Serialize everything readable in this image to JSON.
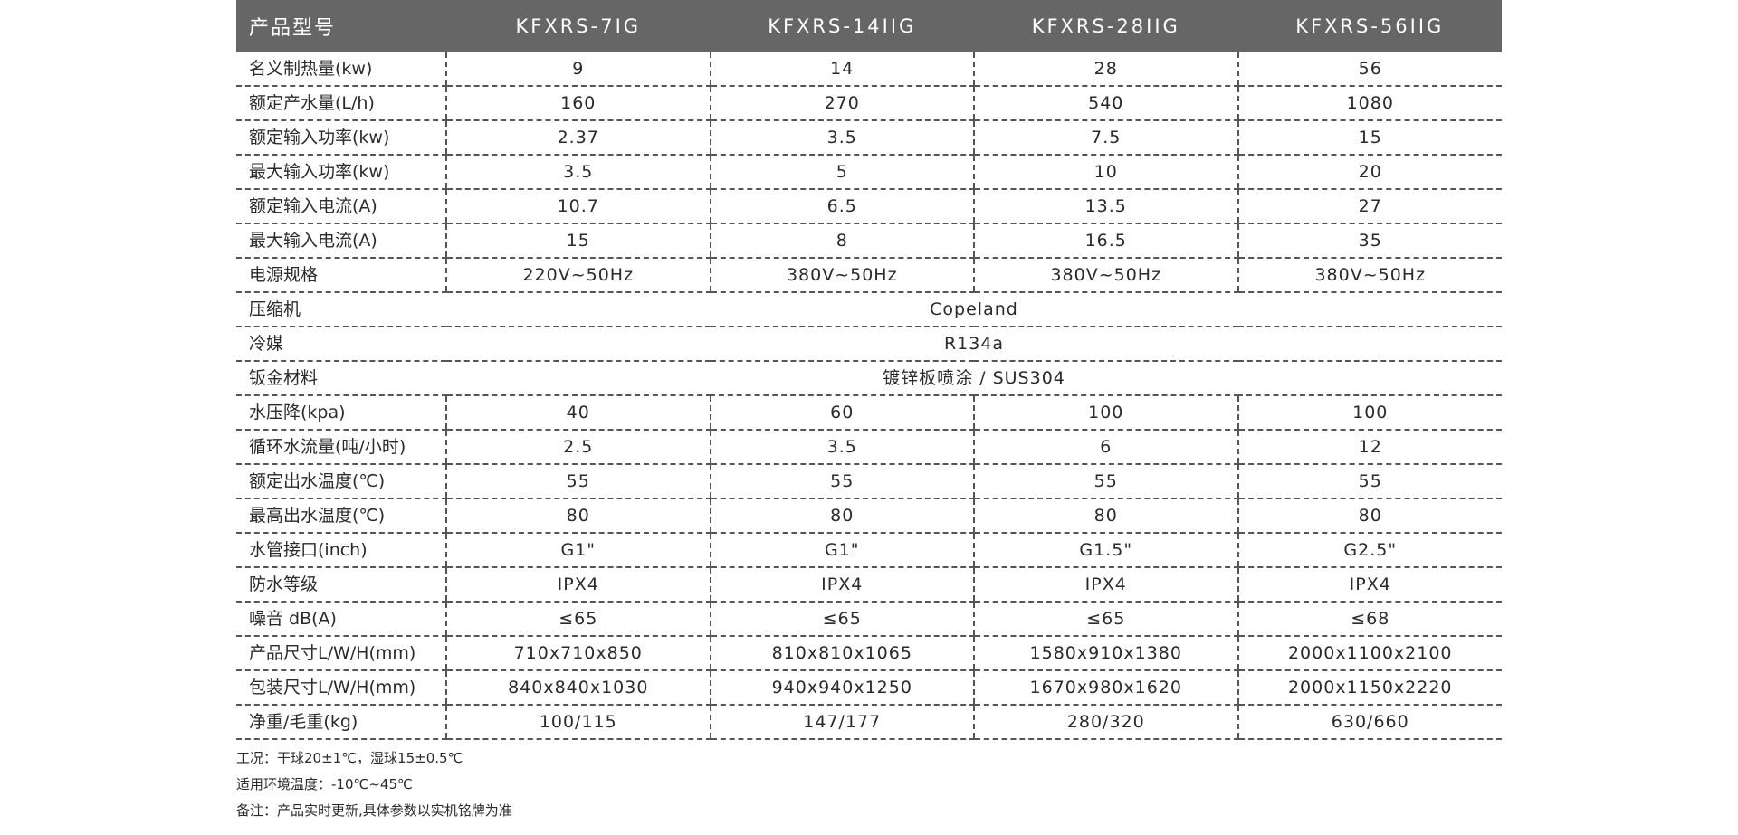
{
  "table": {
    "header": [
      "产品型号",
      "KFXRS-7IG",
      "KFXRS-14IIG",
      "KFXRS-28IIG",
      "KFXRS-56IIG"
    ],
    "rows": [
      {
        "label": "名义制热量(kw)",
        "values": [
          "9",
          "14",
          "28",
          "56"
        ]
      },
      {
        "label": "额定产水量(L/h)",
        "values": [
          "160",
          "270",
          "540",
          "1080"
        ]
      },
      {
        "label": "额定输入功率(kw)",
        "values": [
          "2.37",
          "3.5",
          "7.5",
          "15"
        ]
      },
      {
        "label": "最大输入功率(kw)",
        "values": [
          "3.5",
          "5",
          "10",
          "20"
        ]
      },
      {
        "label": "额定输入电流(A)",
        "values": [
          "10.7",
          "6.5",
          "13.5",
          "27"
        ]
      },
      {
        "label": "最大输入电流(A)",
        "values": [
          "15",
          "8",
          "16.5",
          "35"
        ]
      },
      {
        "label": "电源规格",
        "values": [
          "220V~50Hz",
          "380V~50Hz",
          "380V~50Hz",
          "380V~50Hz"
        ]
      },
      {
        "label": "压缩机",
        "values": [
          "Copeland"
        ]
      },
      {
        "label": "冷媒",
        "values": [
          "R134a"
        ]
      },
      {
        "label": "钣金材料",
        "values": [
          "镀锌板喷涂 / SUS304"
        ]
      },
      {
        "label": "水压降(kpa)",
        "values": [
          "40",
          "60",
          "100",
          "100"
        ]
      },
      {
        "label": "循环水流量(吨/小时)",
        "values": [
          "2.5",
          "3.5",
          "6",
          "12"
        ]
      },
      {
        "label": "额定出水温度(℃)",
        "values": [
          "55",
          "55",
          "55",
          "55"
        ]
      },
      {
        "label": "最高出水温度(℃)",
        "values": [
          "80",
          "80",
          "80",
          "80"
        ]
      },
      {
        "label": "水管接口(inch)",
        "values": [
          "G1\"",
          "G1\"",
          "G1.5\"",
          "G2.5\""
        ]
      },
      {
        "label": "防水等级",
        "values": [
          "IPX4",
          "IPX4",
          "IPX4",
          "IPX4"
        ]
      },
      {
        "label": "噪音 dB(A)",
        "values": [
          "≤65",
          "≤65",
          "≤65",
          "≤68"
        ]
      },
      {
        "label": "产品尺寸L/W/H(mm)",
        "values": [
          "710x710x850",
          "810x810x1065",
          "1580x910x1380",
          "2000x1100x2100"
        ]
      },
      {
        "label": "包装尺寸L/W/H(mm)",
        "values": [
          "840x840x1030",
          "940x940x1250",
          "1670x980x1620",
          "2000x1150x2220"
        ]
      },
      {
        "label": "净重/毛重(kg)",
        "values": [
          "100/115",
          "147/177",
          "280/320",
          "630/660"
        ]
      }
    ]
  },
  "notes": [
    "工况：干球20±1℃，湿球15±0.5℃",
    "适用环境温度：-10℃~45℃",
    "备注：产品实时更新,具体参数以实机铭牌为准"
  ],
  "colors": {
    "header_bg": "#666666",
    "header_text": "#ffffff",
    "divider": "#555555"
  }
}
